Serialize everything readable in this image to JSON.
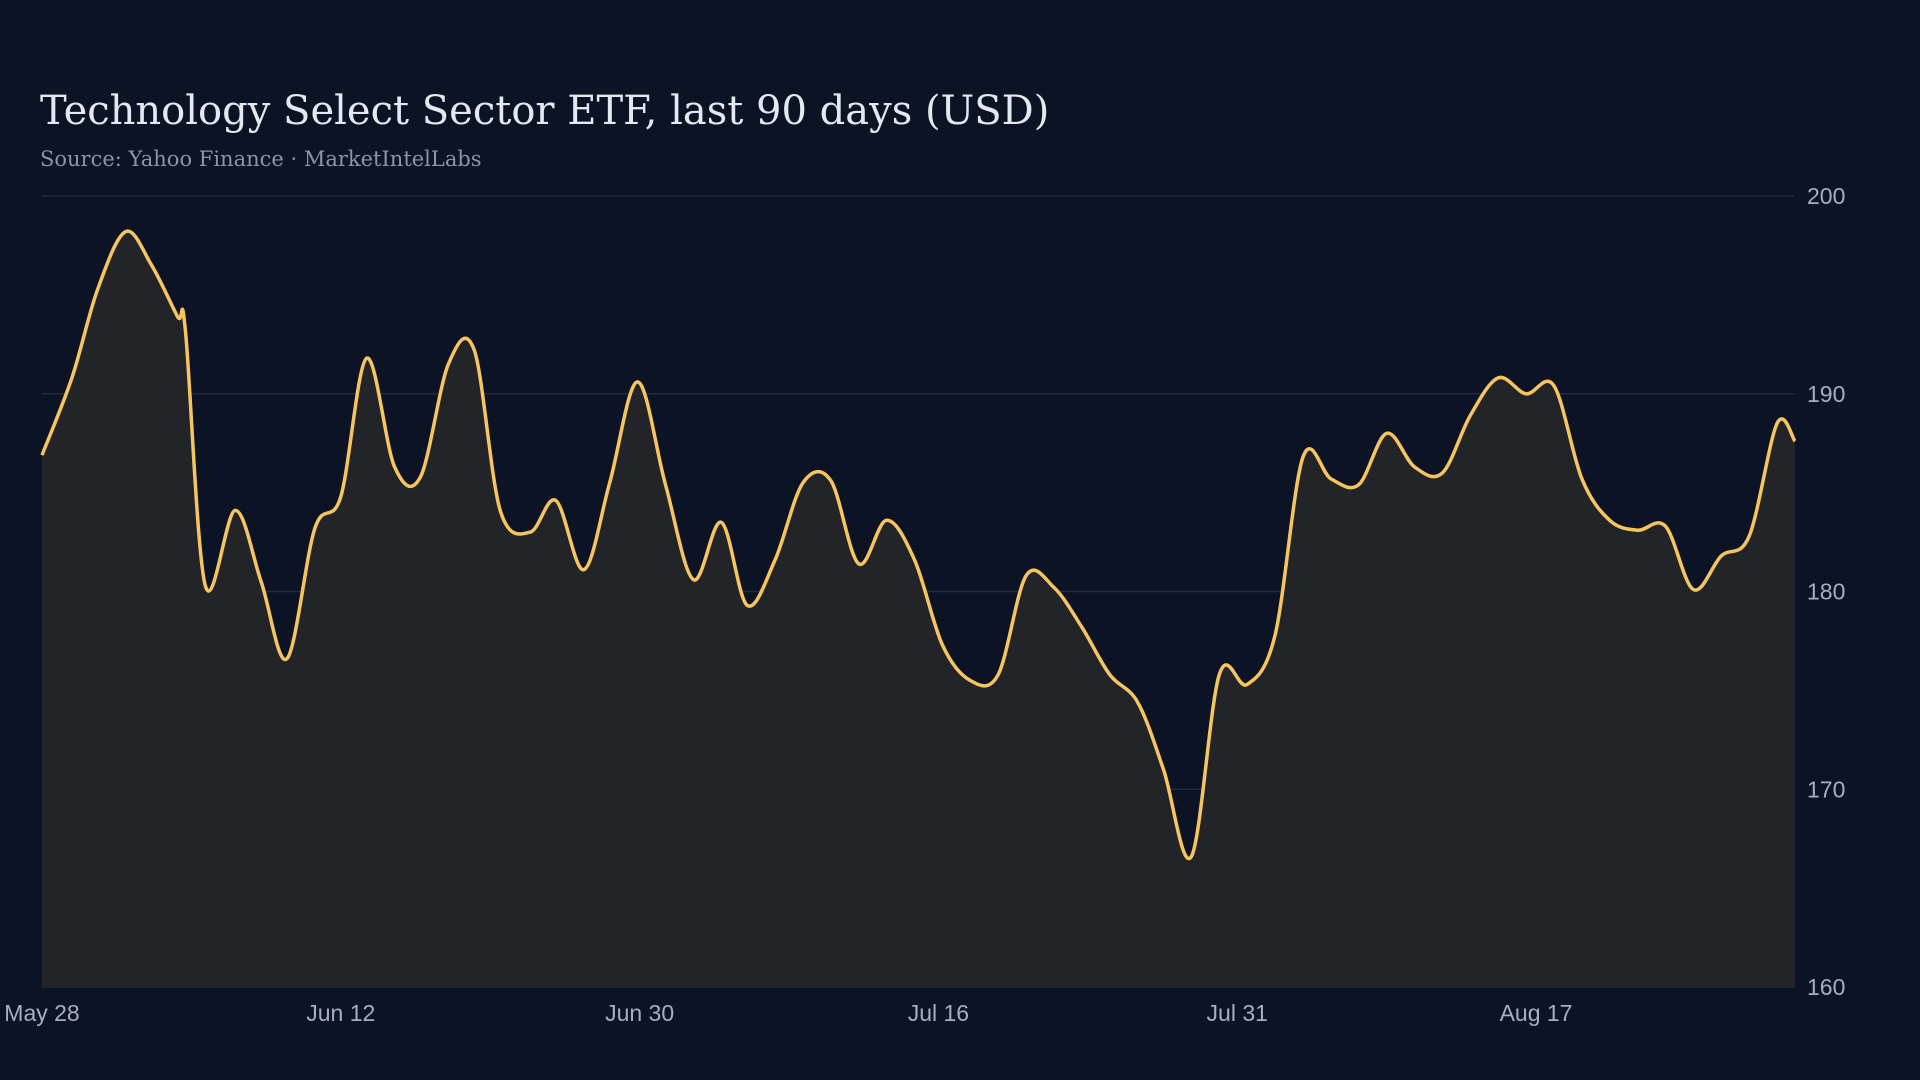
{
  "chart_data": {
    "type": "area",
    "title": "Technology Select Sector ETF, last 90 days (USD)",
    "subtitle": "Source: Yahoo Finance · MarketIntelLabs",
    "xlabel": "",
    "ylabel": "",
    "ylim": [
      160,
      200
    ],
    "yticks": [
      160,
      170,
      180,
      190,
      200
    ],
    "y_axis_side": "right",
    "grid": "horizontal",
    "xticks": [
      {
        "label": "May 28",
        "day": 0
      },
      {
        "label": "Jun 12",
        "day": 15
      },
      {
        "label": "Jun 30",
        "day": 30
      },
      {
        "label": "Jul 16",
        "day": 45
      },
      {
        "label": "Jul 31",
        "day": 60
      },
      {
        "label": "Aug 17",
        "day": 75
      }
    ],
    "x_range_days": [
      0,
      88
    ],
    "series": [
      {
        "color": "#f6c560",
        "points": [
          [
            0,
            186.9
          ],
          [
            1.5,
            190.8
          ],
          [
            2.8,
            195.3
          ],
          [
            4.2,
            198.2
          ],
          [
            5.5,
            196.5
          ],
          [
            6.8,
            193.9
          ],
          [
            7.2,
            193.2
          ],
          [
            8.2,
            180.3
          ],
          [
            9.7,
            184.1
          ],
          [
            11,
            180.5
          ],
          [
            12.3,
            176.6
          ],
          [
            13.7,
            183.2
          ],
          [
            15,
            184.8
          ],
          [
            16.3,
            191.8
          ],
          [
            17.7,
            186.3
          ],
          [
            19,
            185.8
          ],
          [
            20.4,
            191.5
          ],
          [
            21.7,
            192.2
          ],
          [
            23,
            184.1
          ],
          [
            24.5,
            183.0
          ],
          [
            25.8,
            184.6
          ],
          [
            27.2,
            181.1
          ],
          [
            28.5,
            185.5
          ],
          [
            29.9,
            190.6
          ],
          [
            31.3,
            185.4
          ],
          [
            32.7,
            180.6
          ],
          [
            34.1,
            183.5
          ],
          [
            35.4,
            179.3
          ],
          [
            36.8,
            181.6
          ],
          [
            38.2,
            185.5
          ],
          [
            39.6,
            185.6
          ],
          [
            41,
            181.4
          ],
          [
            42.4,
            183.6
          ],
          [
            43.8,
            181.6
          ],
          [
            45.2,
            177.3
          ],
          [
            46.6,
            175.5
          ],
          [
            48,
            175.8
          ],
          [
            49.4,
            180.8
          ],
          [
            50.8,
            180.2
          ],
          [
            52.2,
            178.2
          ],
          [
            53.6,
            175.8
          ],
          [
            55,
            174.4
          ],
          [
            56.3,
            171.0
          ],
          [
            57.7,
            166.6
          ],
          [
            59.1,
            175.8
          ],
          [
            60.5,
            175.3
          ],
          [
            61.9,
            177.8
          ],
          [
            63.3,
            186.8
          ],
          [
            64.7,
            185.7
          ],
          [
            66.1,
            185.4
          ],
          [
            67.5,
            188.0
          ],
          [
            68.9,
            186.3
          ],
          [
            70.3,
            186.0
          ],
          [
            71.7,
            188.9
          ],
          [
            73.1,
            190.8
          ],
          [
            74.5,
            190.0
          ],
          [
            75.9,
            190.4
          ],
          [
            77.3,
            185.7
          ],
          [
            78.7,
            183.6
          ],
          [
            80.1,
            183.1
          ],
          [
            81.5,
            183.3
          ],
          [
            82.9,
            180.1
          ],
          [
            84.3,
            181.8
          ],
          [
            85.7,
            182.8
          ],
          [
            87.1,
            188.5
          ],
          [
            88,
            187.6
          ]
        ]
      }
    ]
  },
  "colors": {
    "background": "#0b1324",
    "line": "#f6c560",
    "area_fill": "#222428",
    "grid": "#1f2a3a",
    "tick_label": "#a7afbf"
  }
}
